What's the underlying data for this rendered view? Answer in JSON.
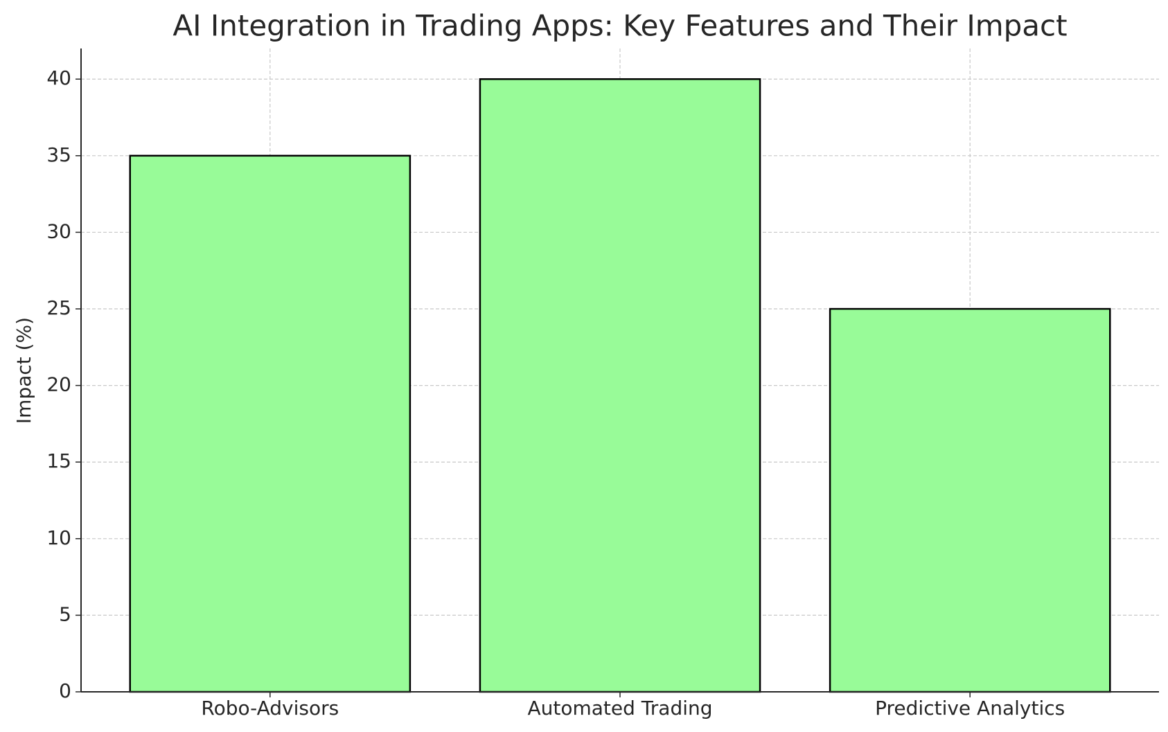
{
  "chart_data": {
    "type": "bar",
    "title": "AI Integration in Trading Apps: Key Features and Their Impact",
    "y_label": "Impact (%)",
    "categories": [
      "Robo-Advisors",
      "Automated Trading",
      "Predictive Analytics"
    ],
    "values": [
      35,
      40,
      25
    ],
    "color": "#98fb98",
    "edgecolor": "#000000",
    "ylim": [
      0,
      42
    ],
    "yticks": [
      0,
      5,
      10,
      15,
      20,
      25,
      30,
      35,
      40
    ],
    "grid": true
  }
}
